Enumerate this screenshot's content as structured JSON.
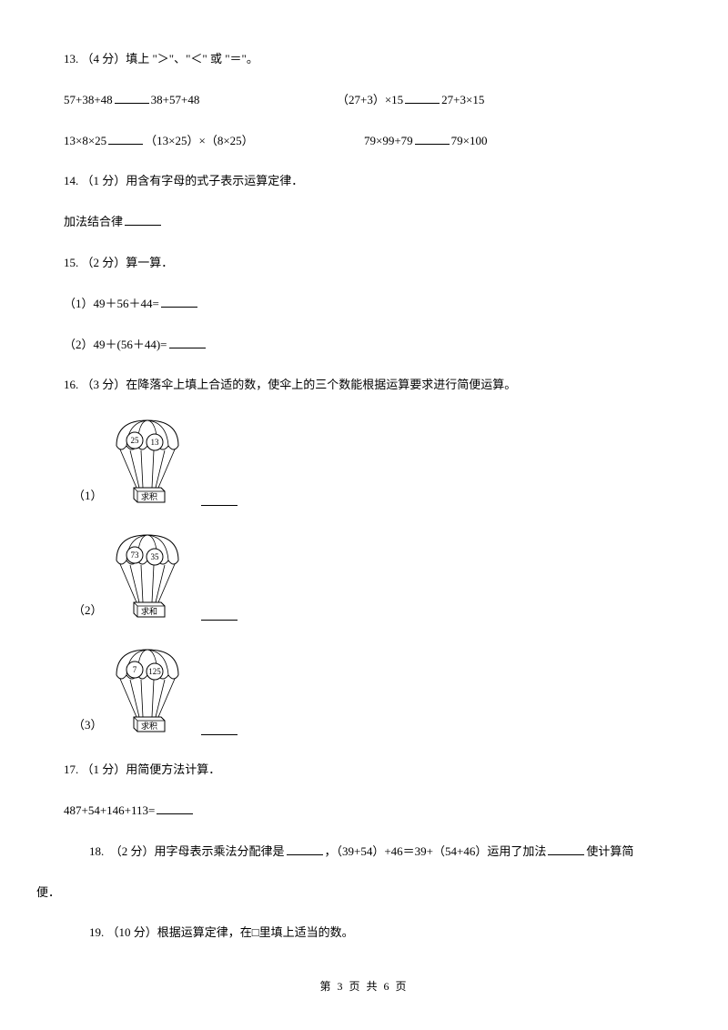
{
  "q13": {
    "prompt": "13. （4 分）填上 \"＞\"、\"＜\" 或 \"＝\"。",
    "line1_a": "57+38+48",
    "line1_b": "38+57+48",
    "line1_c": "（27+3）×15",
    "line1_d": "27+3×15",
    "line2_a": "13×8×25",
    "line2_b": "（13×25）×（8×25）",
    "line2_c": "79×99+79",
    "line2_d": "79×100"
  },
  "q14": {
    "prompt": "14. （1 分）用含有字母的式子表示运算定律．",
    "label": "加法结合律"
  },
  "q15": {
    "prompt": "15. （2 分）算一算．",
    "s1": "（1）49＋56＋44=",
    "s2": "（2）49＋(56＋44)="
  },
  "q16": {
    "prompt": "16. （3 分）在降落伞上填上合适的数，使伞上的三个数能根据运算要求进行简便运算。",
    "items": [
      {
        "num": "（1）",
        "a": "25",
        "b": "13",
        "op": "求积"
      },
      {
        "num": "（2）",
        "a": "73",
        "b": "35",
        "op": "求和"
      },
      {
        "num": "（3）",
        "a": "7",
        "b": "125",
        "op": "求积"
      }
    ]
  },
  "q17": {
    "prompt": "17. （1 分）用简便方法计算．",
    "expr": "487+54+146+113="
  },
  "q18": {
    "part1": "18.　（2 分）用字母表示乘法分配律是",
    "part2": "，（39+54）+46＝39+（54+46）运用了加法",
    "part3": "使计算简",
    "part4": "便．"
  },
  "q19": {
    "prompt": "19. （10 分）根据运算定律，在□里填上适当的数。"
  },
  "footer": "第 3 页 共 6 页",
  "svg": {
    "stroke": "#000000",
    "font_num": 9,
    "font_op": 9
  }
}
